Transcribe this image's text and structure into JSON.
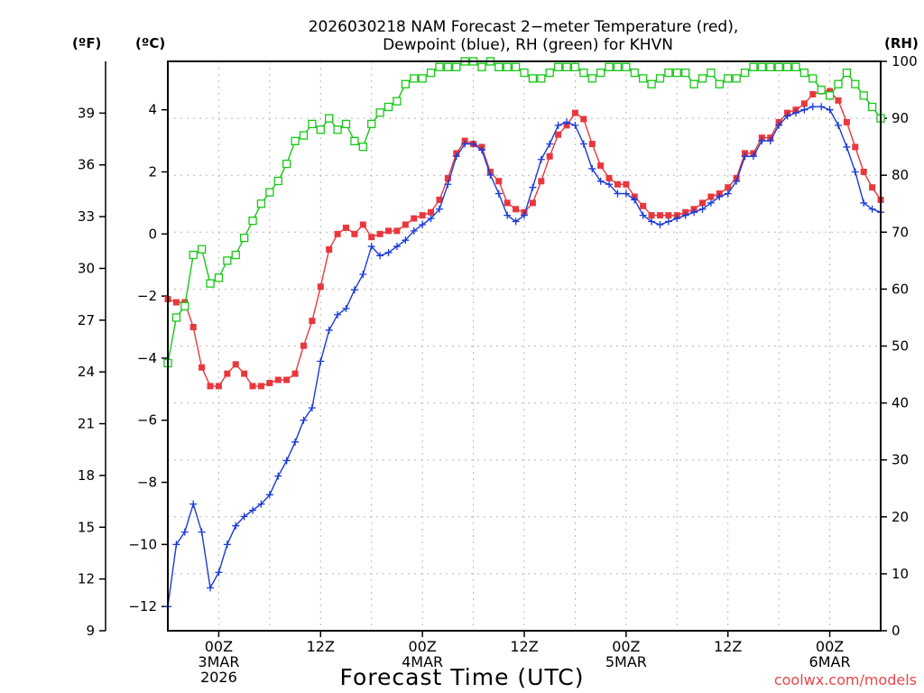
{
  "chart_data": {
    "type": "line",
    "title": [
      "2026030218 NAM Forecast 2−meter Temperature (red),",
      "Dewpoint (blue), RH (green) for KHVN"
    ],
    "xlabel": "Forecast Time (UTC)",
    "credit": "coolwx.com/models",
    "x_ticks": [
      {
        "hour": 6,
        "lines": [
          "00Z",
          "3MAR",
          "2026"
        ]
      },
      {
        "hour": 18,
        "lines": [
          "12Z"
        ]
      },
      {
        "hour": 30,
        "lines": [
          "00Z",
          "4MAR"
        ]
      },
      {
        "hour": 42,
        "lines": [
          "12Z"
        ]
      },
      {
        "hour": 54,
        "lines": [
          "00Z",
          "5MAR"
        ]
      },
      {
        "hour": 66,
        "lines": [
          "12Z"
        ]
      },
      {
        "hour": 78,
        "lines": [
          "00Z",
          "6MAR"
        ]
      }
    ],
    "x_range": [
      0,
      84
    ],
    "axes": {
      "fahrenheit": {
        "label": "(ºF)",
        "range": [
          9,
          42
        ],
        "ticks": [
          9,
          12,
          15,
          18,
          21,
          24,
          27,
          30,
          33,
          36,
          39
        ]
      },
      "celsius": {
        "label": "(ºC)",
        "range": [
          -12.78,
          5.56
        ],
        "ticks": [
          -12,
          -10,
          -8,
          -6,
          -4,
          -2,
          0,
          2,
          4
        ]
      },
      "rh": {
        "label": "(RH)",
        "range": [
          0,
          100
        ],
        "ticks": [
          0,
          10,
          20,
          30,
          40,
          50,
          60,
          70,
          80,
          90,
          100
        ]
      }
    },
    "series": [
      {
        "name": "2-meter Temperature",
        "unit": "C",
        "color": "#e8383d",
        "marker": "square-filled",
        "x": [
          0,
          1,
          2,
          3,
          4,
          5,
          6,
          7,
          8,
          9,
          10,
          11,
          12,
          13,
          14,
          15,
          16,
          17,
          18,
          19,
          20,
          21,
          22,
          23,
          24,
          25,
          26,
          27,
          28,
          29,
          30,
          31,
          32,
          33,
          34,
          35,
          36,
          37,
          38,
          39,
          40,
          41,
          42,
          43,
          44,
          45,
          46,
          47,
          48,
          49,
          50,
          51,
          52,
          53,
          54,
          55,
          56,
          57,
          58,
          59,
          60,
          61,
          62,
          63,
          64,
          65,
          66,
          67,
          68,
          69,
          70,
          71,
          72,
          73,
          74,
          75,
          76,
          77,
          78,
          79,
          80,
          81,
          82,
          83,
          84
        ],
        "values": [
          -2.1,
          -2.2,
          -2.2,
          -3.0,
          -4.3,
          -4.9,
          -4.9,
          -4.5,
          -4.2,
          -4.5,
          -4.9,
          -4.9,
          -4.8,
          -4.7,
          -4.7,
          -4.5,
          -3.6,
          -2.8,
          -1.7,
          -0.5,
          0.0,
          0.2,
          0.0,
          0.3,
          -0.1,
          0.0,
          0.1,
          0.1,
          0.3,
          0.5,
          0.6,
          0.7,
          1.1,
          1.8,
          2.6,
          3.0,
          2.9,
          2.8,
          2.0,
          1.7,
          1.0,
          0.8,
          0.7,
          1.0,
          1.7,
          2.5,
          3.2,
          3.5,
          3.9,
          3.7,
          2.9,
          2.2,
          1.8,
          1.6,
          1.6,
          1.2,
          0.9,
          0.6,
          0.6,
          0.6,
          0.6,
          0.7,
          0.8,
          1.0,
          1.2,
          1.3,
          1.5,
          1.8,
          2.6,
          2.6,
          3.1,
          3.1,
          3.6,
          3.9,
          4.0,
          4.2,
          4.5,
          4.6,
          4.6,
          4.3,
          3.6,
          2.8,
          2.0,
          1.5,
          1.1
        ]
      },
      {
        "name": "Dewpoint",
        "unit": "C",
        "color": "#1a3ad8",
        "marker": "plus",
        "x": [
          0,
          1,
          2,
          3,
          4,
          5,
          6,
          7,
          8,
          9,
          10,
          11,
          12,
          13,
          14,
          15,
          16,
          17,
          18,
          19,
          20,
          21,
          22,
          23,
          24,
          25,
          26,
          27,
          28,
          29,
          30,
          31,
          32,
          33,
          34,
          35,
          36,
          37,
          38,
          39,
          40,
          41,
          42,
          43,
          44,
          45,
          46,
          47,
          48,
          49,
          50,
          51,
          52,
          53,
          54,
          55,
          56,
          57,
          58,
          59,
          60,
          61,
          62,
          63,
          64,
          65,
          66,
          67,
          68,
          69,
          70,
          71,
          72,
          73,
          74,
          75,
          76,
          77,
          78,
          79,
          80,
          81,
          82,
          83,
          84
        ],
        "values": [
          -12.0,
          -10.0,
          -9.6,
          -8.7,
          -9.6,
          -11.4,
          -10.9,
          -10.0,
          -9.4,
          -9.1,
          -8.9,
          -8.7,
          -8.4,
          -7.8,
          -7.3,
          -6.7,
          -6.0,
          -5.6,
          -4.1,
          -3.1,
          -2.6,
          -2.4,
          -1.8,
          -1.3,
          -0.4,
          -0.7,
          -0.6,
          -0.4,
          -0.2,
          0.1,
          0.3,
          0.5,
          0.8,
          1.6,
          2.5,
          2.9,
          2.9,
          2.7,
          1.9,
          1.3,
          0.6,
          0.4,
          0.6,
          1.5,
          2.4,
          2.9,
          3.5,
          3.6,
          3.5,
          2.9,
          2.1,
          1.7,
          1.6,
          1.3,
          1.3,
          1.1,
          0.6,
          0.4,
          0.3,
          0.4,
          0.5,
          0.6,
          0.7,
          0.8,
          1.0,
          1.2,
          1.3,
          1.7,
          2.5,
          2.5,
          3.0,
          3.0,
          3.5,
          3.8,
          3.9,
          4.0,
          4.1,
          4.1,
          4.0,
          3.5,
          2.8,
          2.0,
          1.0,
          0.8,
          0.7
        ]
      },
      {
        "name": "RH",
        "unit": "%",
        "color": "#16c816",
        "marker": "square-open",
        "x": [
          0,
          1,
          2,
          3,
          4,
          5,
          6,
          7,
          8,
          9,
          10,
          11,
          12,
          13,
          14,
          15,
          16,
          17,
          18,
          19,
          20,
          21,
          22,
          23,
          24,
          25,
          26,
          27,
          28,
          29,
          30,
          31,
          32,
          33,
          34,
          35,
          36,
          37,
          38,
          39,
          40,
          41,
          42,
          43,
          44,
          45,
          46,
          47,
          48,
          49,
          50,
          51,
          52,
          53,
          54,
          55,
          56,
          57,
          58,
          59,
          60,
          61,
          62,
          63,
          64,
          65,
          66,
          67,
          68,
          69,
          70,
          71,
          72,
          73,
          74,
          75,
          76,
          77,
          78,
          79,
          80,
          81,
          82,
          83,
          84
        ],
        "values": [
          47,
          55,
          57,
          66,
          67,
          61,
          62,
          65,
          66,
          69,
          72,
          75,
          77,
          79,
          82,
          86,
          87,
          89,
          88,
          90,
          88,
          89,
          86,
          85,
          89,
          91,
          92,
          93,
          96,
          97,
          97,
          98,
          99,
          99,
          99,
          100,
          100,
          99,
          100,
          99,
          99,
          99,
          98,
          97,
          97,
          98,
          99,
          99,
          99,
          98,
          97,
          98,
          99,
          99,
          99,
          98,
          97,
          96,
          97,
          98,
          98,
          98,
          96,
          97,
          98,
          96,
          97,
          97,
          98,
          99,
          99,
          99,
          99,
          99,
          99,
          98,
          97,
          95,
          94,
          96,
          98,
          96,
          94,
          92,
          90
        ]
      }
    ]
  }
}
